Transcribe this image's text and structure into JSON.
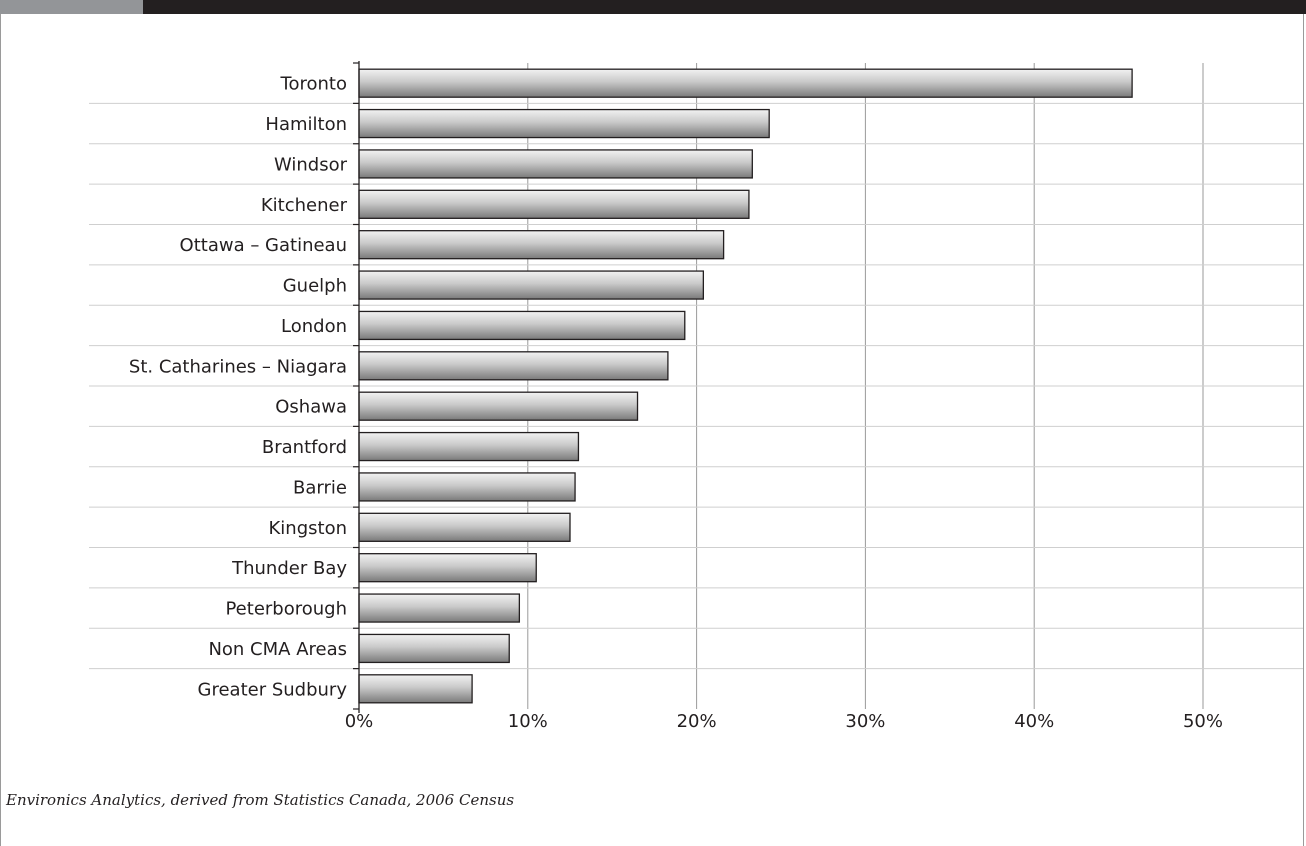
{
  "chart_data": {
    "type": "bar",
    "orientation": "horizontal",
    "title": "",
    "xlabel": "",
    "ylabel": "",
    "categories": [
      "Toronto",
      "Hamilton",
      "Windsor",
      "Kitchener",
      "Ottawa – Gatineau",
      "Guelph",
      "London",
      "St. Catharines – Niagara",
      "Oshawa",
      "Brantford",
      "Barrie",
      "Kingston",
      "Thunder Bay",
      "Peterborough",
      "Non CMA Areas",
      "Greater Sudbury"
    ],
    "values": [
      45.8,
      24.3,
      23.3,
      23.1,
      21.6,
      20.4,
      19.3,
      18.3,
      16.5,
      13.0,
      12.8,
      12.5,
      10.5,
      9.5,
      8.9,
      6.7
    ],
    "value_unit": "percent",
    "xlim": [
      0,
      50
    ],
    "x_ticks": [
      "0%",
      "10%",
      "20%",
      "30%",
      "40%",
      "50%"
    ],
    "grid": "vertical",
    "legend": "none",
    "colors": {
      "bar_light": "#f2f2f2",
      "bar_dark": "#7a7a7a",
      "bar_stroke": "#231f20",
      "grid": "#9a9a9a",
      "separator": "#cfcfcf"
    }
  },
  "source": "Environics Analytics, derived from Statistics Canada, 2006 Census"
}
